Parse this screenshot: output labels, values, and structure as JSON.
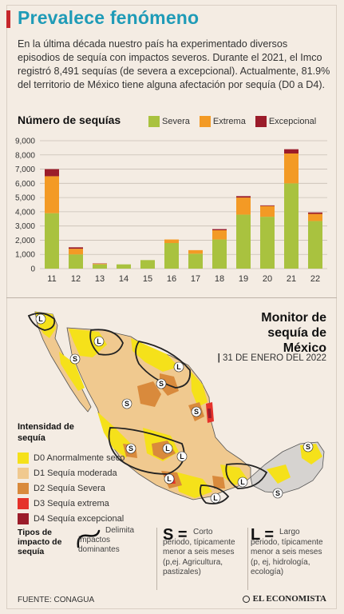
{
  "header": {
    "title": "Prevalece fenómeno",
    "intro": "En la última década nuestro país ha experimentado diversos episodios de sequía con impactos severos. Durante el 2021, el Imco registró 8,491 sequías (de severa a excepcional). Actualmente, 81.9% del territorio de México tiene alguna afectación por sequía (D0 a D4)."
  },
  "colors": {
    "severa": "#a9c23f",
    "extrema": "#f39a25",
    "excepcional": "#9b1c2a",
    "accent": "#1f9bb7",
    "red_bar": "#c6262b",
    "d0": "#f5e11a",
    "d1": "#f0c98f",
    "d2": "#d98a3c",
    "d3": "#e5322b",
    "d4": "#9b1c2a",
    "no_drought": "#d6d3d0"
  },
  "chart_data": {
    "type": "bar",
    "stacked": true,
    "title": "Número de sequías",
    "categories": [
      "11",
      "12",
      "13",
      "14",
      "15",
      "16",
      "17",
      "18",
      "19",
      "20",
      "21",
      "22"
    ],
    "series": [
      {
        "name": "Severa",
        "values": [
          3900,
          1000,
          300,
          300,
          600,
          1800,
          1050,
          2050,
          3800,
          3650,
          6000,
          3350
        ]
      },
      {
        "name": "Extrema",
        "values": [
          2600,
          400,
          50,
          0,
          0,
          250,
          250,
          650,
          1200,
          750,
          2100,
          500
        ]
      },
      {
        "name": "Excepcional",
        "values": [
          500,
          100,
          20,
          0,
          0,
          0,
          0,
          80,
          100,
          50,
          300,
          100
        ]
      }
    ],
    "yticks": [
      "9,000",
      "8,000",
      "7,000",
      "6,000",
      "5,000",
      "4,000",
      "3,000",
      "2,000",
      "1,000",
      "0"
    ],
    "ylim": [
      0,
      9000
    ],
    "grid": true,
    "legend_position": "top-right"
  },
  "map": {
    "title_lines": [
      "Monitor de",
      "sequía de",
      "México"
    ],
    "date_separator": "|",
    "date": "31 DE ENERO DEL 2022",
    "intensity_title": "Intensidad de sequía",
    "intensity_items": [
      {
        "code": "D0",
        "label": "D0 Anormalmente seco",
        "color_key": "d0"
      },
      {
        "code": "D1",
        "label": "D1 Sequía moderada",
        "color_key": "d1"
      },
      {
        "code": "D2",
        "label": "D2 Sequía Severa",
        "color_key": "d2"
      },
      {
        "code": "D3",
        "label": "D3 Sequía extrema",
        "color_key": "d3"
      },
      {
        "code": "D4",
        "label": "D4 Sequía excepcional",
        "color_key": "d4"
      }
    ]
  },
  "impact_types": {
    "title": "Tipos de impacto de sequía",
    "line_text": "Delimita impactos dominantes",
    "short_letter": "S =",
    "short_text": "Corto periodo, típicamente menor a seis meses (p,ej. Agricultura, pastizales)",
    "long_letter": "L =",
    "long_text": "Largo periodo, típicamente menor a seis meses (p, ej, hidrología, ecología)"
  },
  "footer": {
    "source": "FUENTE: CONAGUA",
    "brand": "EL ECONOMISTA"
  }
}
